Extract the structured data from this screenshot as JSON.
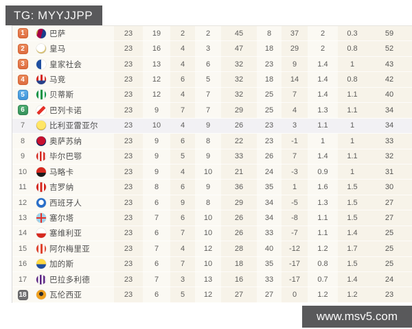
{
  "banner": {
    "text": "TG: MYYJJPP"
  },
  "watermark": {
    "text": "www.msv5.com"
  },
  "colors": {
    "banner_bg": "#59595b",
    "watermark_bg": "#59595b",
    "table_cream": "#f7f3e9",
    "table_light": "#fbf9f3",
    "row_highlight": "#f2f1f4",
    "badge_champions": "#e2754b",
    "badge_europa": "#4aa0e0",
    "badge_conference": "#3fa065",
    "badge_relegation": "#717173"
  },
  "standings": {
    "rows": [
      {
        "rank": "1",
        "team": "巴萨",
        "logo": "barcelona",
        "badge": "orange",
        "highlighted": false,
        "played": "23",
        "won": "19",
        "drawn": "2",
        "lost": "2",
        "goals_for": "45",
        "goals_against": "8",
        "goal_diff": "37",
        "avg_for": "2",
        "avg_against": "0.3",
        "points": "59"
      },
      {
        "rank": "2",
        "team": "皇马",
        "logo": "real-madrid",
        "badge": "orange",
        "highlighted": false,
        "played": "23",
        "won": "16",
        "drawn": "4",
        "lost": "3",
        "goals_for": "47",
        "goals_against": "18",
        "goal_diff": "29",
        "avg_for": "2",
        "avg_against": "0.8",
        "points": "52"
      },
      {
        "rank": "3",
        "team": "皇家社会",
        "logo": "real-sociedad",
        "badge": "orange",
        "highlighted": false,
        "played": "23",
        "won": "13",
        "drawn": "4",
        "lost": "6",
        "goals_for": "32",
        "goals_against": "23",
        "goal_diff": "9",
        "avg_for": "1.4",
        "avg_against": "1",
        "points": "43"
      },
      {
        "rank": "4",
        "team": "马竞",
        "logo": "atletico-madrid",
        "badge": "orange",
        "highlighted": false,
        "played": "23",
        "won": "12",
        "drawn": "6",
        "lost": "5",
        "goals_for": "32",
        "goals_against": "18",
        "goal_diff": "14",
        "avg_for": "1.4",
        "avg_against": "0.8",
        "points": "42"
      },
      {
        "rank": "5",
        "team": "贝蒂斯",
        "logo": "real-betis",
        "badge": "blue",
        "highlighted": false,
        "played": "23",
        "won": "12",
        "drawn": "4",
        "lost": "7",
        "goals_for": "32",
        "goals_against": "25",
        "goal_diff": "7",
        "avg_for": "1.4",
        "avg_against": "1.1",
        "points": "40"
      },
      {
        "rank": "6",
        "team": "巴列卡诺",
        "logo": "rayo-vallecano",
        "badge": "green",
        "highlighted": false,
        "played": "23",
        "won": "9",
        "drawn": "7",
        "lost": "7",
        "goals_for": "29",
        "goals_against": "25",
        "goal_diff": "4",
        "avg_for": "1.3",
        "avg_against": "1.1",
        "points": "34"
      },
      {
        "rank": "7",
        "team": "比利亚雷亚尔",
        "logo": "villarreal",
        "badge": "none",
        "highlighted": true,
        "played": "23",
        "won": "10",
        "drawn": "4",
        "lost": "9",
        "goals_for": "26",
        "goals_against": "23",
        "goal_diff": "3",
        "avg_for": "1.1",
        "avg_against": "1",
        "points": "34"
      },
      {
        "rank": "8",
        "team": "奥萨苏纳",
        "logo": "osasuna",
        "badge": "none",
        "highlighted": false,
        "played": "23",
        "won": "9",
        "drawn": "6",
        "lost": "8",
        "goals_for": "22",
        "goals_against": "23",
        "goal_diff": "-1",
        "avg_for": "1",
        "avg_against": "1",
        "points": "33"
      },
      {
        "rank": "9",
        "team": "毕尔巴鄂",
        "logo": "athletic-bilbao",
        "badge": "none",
        "highlighted": false,
        "played": "23",
        "won": "9",
        "drawn": "5",
        "lost": "9",
        "goals_for": "33",
        "goals_against": "26",
        "goal_diff": "7",
        "avg_for": "1.4",
        "avg_against": "1.1",
        "points": "32"
      },
      {
        "rank": "10",
        "team": "马略卡",
        "logo": "mallorca",
        "badge": "none",
        "highlighted": false,
        "played": "23",
        "won": "9",
        "drawn": "4",
        "lost": "10",
        "goals_for": "21",
        "goals_against": "24",
        "goal_diff": "-3",
        "avg_for": "0.9",
        "avg_against": "1",
        "points": "31"
      },
      {
        "rank": "11",
        "team": "吉罗纳",
        "logo": "girona",
        "badge": "none",
        "highlighted": false,
        "played": "23",
        "won": "8",
        "drawn": "6",
        "lost": "9",
        "goals_for": "36",
        "goals_against": "35",
        "goal_diff": "1",
        "avg_for": "1.6",
        "avg_against": "1.5",
        "points": "30"
      },
      {
        "rank": "12",
        "team": "西班牙人",
        "logo": "espanyol",
        "badge": "none",
        "highlighted": false,
        "played": "23",
        "won": "6",
        "drawn": "9",
        "lost": "8",
        "goals_for": "29",
        "goals_against": "34",
        "goal_diff": "-5",
        "avg_for": "1.3",
        "avg_against": "1.5",
        "points": "27"
      },
      {
        "rank": "13",
        "team": "塞尔塔",
        "logo": "celta-vigo",
        "badge": "none",
        "highlighted": false,
        "played": "23",
        "won": "7",
        "drawn": "6",
        "lost": "10",
        "goals_for": "26",
        "goals_against": "34",
        "goal_diff": "-8",
        "avg_for": "1.1",
        "avg_against": "1.5",
        "points": "27"
      },
      {
        "rank": "14",
        "team": "塞维利亚",
        "logo": "sevilla",
        "badge": "none",
        "highlighted": false,
        "played": "23",
        "won": "6",
        "drawn": "7",
        "lost": "10",
        "goals_for": "26",
        "goals_against": "33",
        "goal_diff": "-7",
        "avg_for": "1.1",
        "avg_against": "1.4",
        "points": "25"
      },
      {
        "rank": "15",
        "team": "阿尔梅里亚",
        "logo": "almeria",
        "badge": "none",
        "highlighted": false,
        "played": "23",
        "won": "7",
        "drawn": "4",
        "lost": "12",
        "goals_for": "28",
        "goals_against": "40",
        "goal_diff": "-12",
        "avg_for": "1.2",
        "avg_against": "1.7",
        "points": "25"
      },
      {
        "rank": "16",
        "team": "加的斯",
        "logo": "cadiz",
        "badge": "none",
        "highlighted": false,
        "played": "23",
        "won": "6",
        "drawn": "7",
        "lost": "10",
        "goals_for": "18",
        "goals_against": "35",
        "goal_diff": "-17",
        "avg_for": "0.8",
        "avg_against": "1.5",
        "points": "25"
      },
      {
        "rank": "17",
        "team": "巴拉多利德",
        "logo": "valladolid",
        "badge": "none",
        "highlighted": false,
        "played": "23",
        "won": "7",
        "drawn": "3",
        "lost": "13",
        "goals_for": "16",
        "goals_against": "33",
        "goal_diff": "-17",
        "avg_for": "0.7",
        "avg_against": "1.4",
        "points": "24"
      },
      {
        "rank": "18",
        "team": "瓦伦西亚",
        "logo": "valencia",
        "badge": "gray",
        "highlighted": false,
        "played": "23",
        "won": "6",
        "drawn": "5",
        "lost": "12",
        "goals_for": "27",
        "goals_against": "27",
        "goal_diff": "0",
        "avg_for": "1.2",
        "avg_against": "1.2",
        "points": "23"
      }
    ]
  }
}
